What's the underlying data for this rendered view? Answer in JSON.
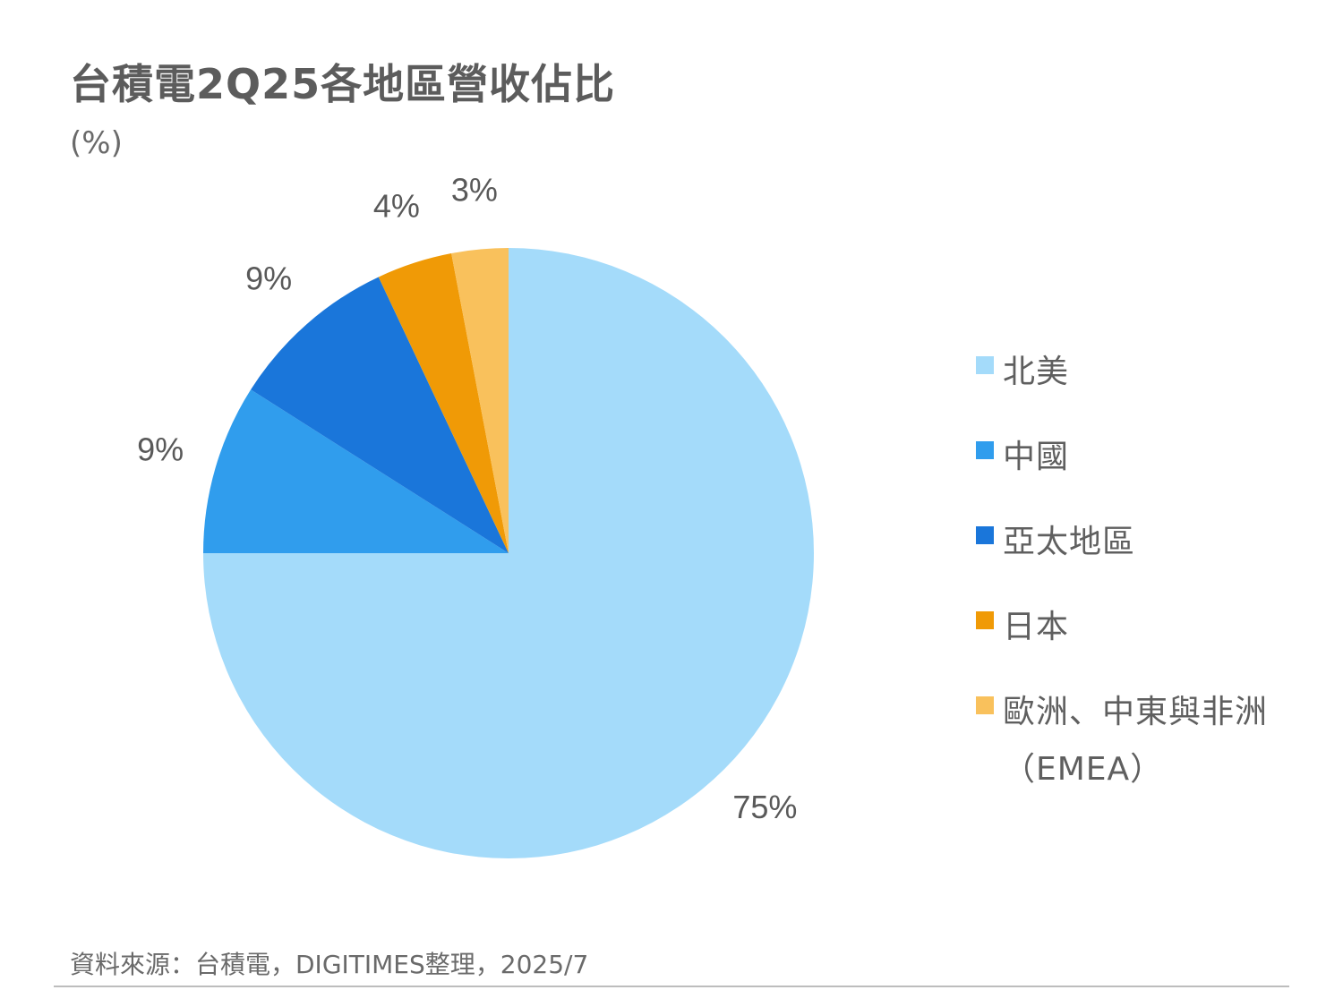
{
  "chart_data": {
    "type": "pie",
    "title": "台積電2Q25各地區營收佔比",
    "subtitle": "(%)",
    "categories": [
      "北美",
      "中國",
      "亞太地區",
      "日本",
      "歐洲、中東與非洲（EMEA）"
    ],
    "values": [
      75,
      9,
      9,
      4,
      3
    ],
    "data_labels": [
      "75%",
      "9%",
      "9%",
      "4%",
      "3%"
    ],
    "colors": [
      "#A4DBFA",
      "#309DED",
      "#1A76DA",
      "#F09A06",
      "#F9C15C"
    ],
    "legend_position": "right",
    "start_angle": "12-o'clock",
    "direction": "clockwise"
  },
  "source": "資料來源：台積電，DIGITIMES整理，2025/7"
}
